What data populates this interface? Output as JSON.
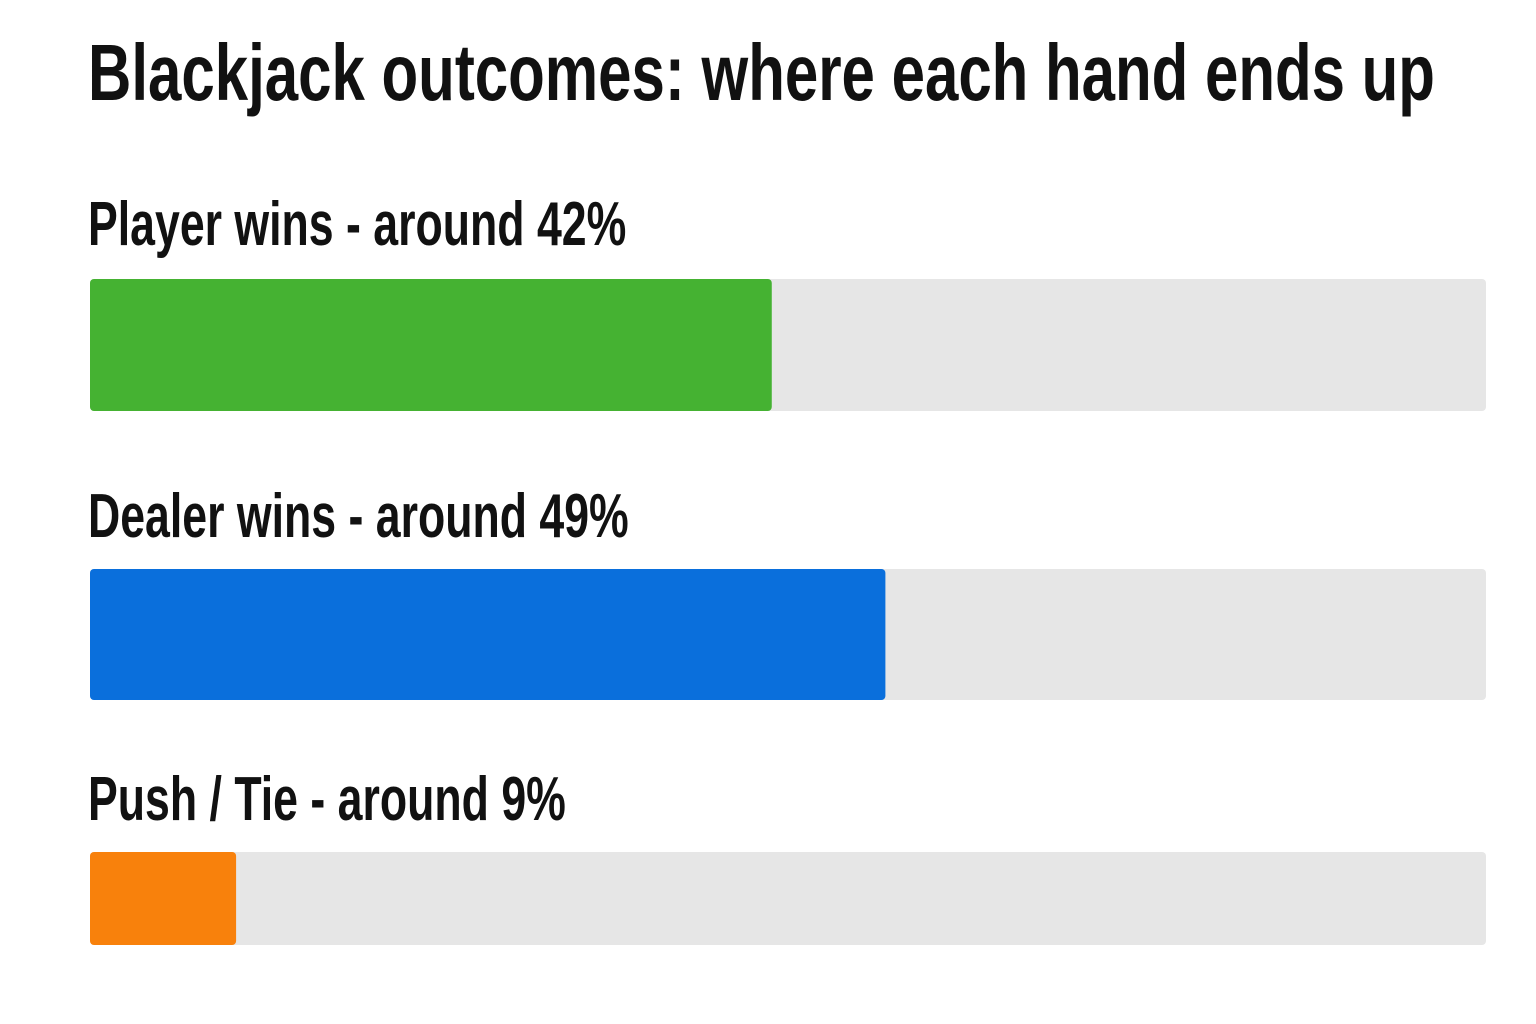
{
  "chart_data": {
    "type": "bar",
    "orientation": "horizontal",
    "title": "Blackjack outcomes: where each hand ends up",
    "categories": [
      "Player wins - around 42%",
      "Dealer wins - around 49%",
      "Push / Tie - around 9%"
    ],
    "values": [
      42,
      49,
      9
    ],
    "colors": [
      "#45b232",
      "#0a6fdc",
      "#f8810c"
    ],
    "track_color": "#e6e6e6",
    "xlim": [
      0,
      86
    ]
  }
}
